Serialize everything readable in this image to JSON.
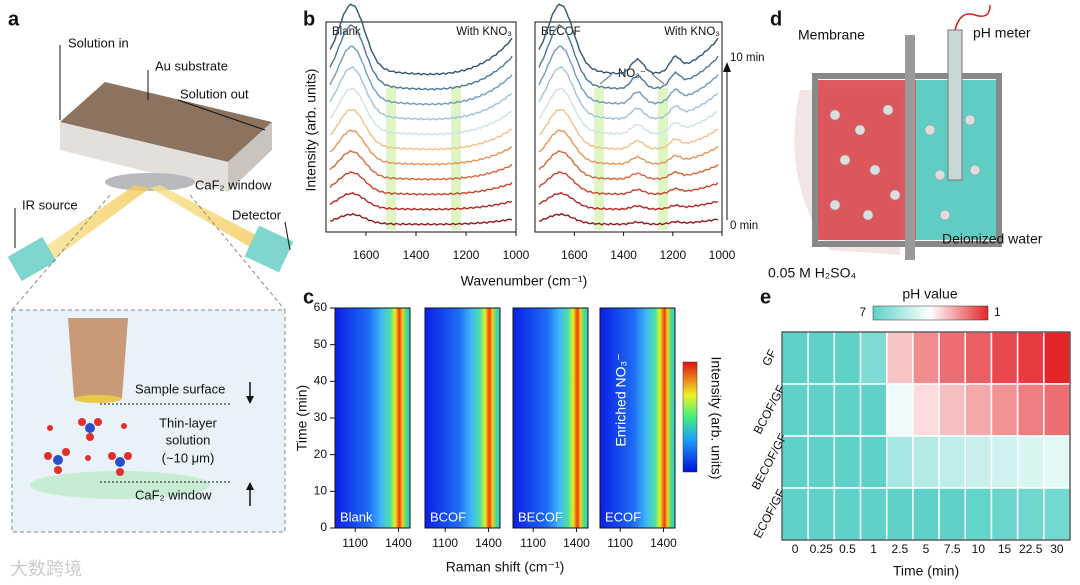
{
  "watermark": "大数跨境",
  "panel_a": {
    "label": "a",
    "solution_in": "Solution in",
    "au_substrate": "Au substrate",
    "solution_out": "Solution out",
    "window_top": "CaF₂ window",
    "ir_source": "IR source",
    "detector": "Detector",
    "sample_surface": "Sample surface",
    "thin_layer": "Thin-layer",
    "solution": "solution",
    "thickness": "(~10 μm)",
    "window_bottom": "CaF₂ window"
  },
  "panel_b": {
    "label": "b",
    "ylabel": "Intensity (arb. units)",
    "xlabel": "Wavenumber (cm⁻¹)",
    "xlim": [
      1760,
      1000
    ],
    "xticks": [
      1600,
      1400,
      1200,
      1000
    ],
    "plots": [
      {
        "name": "Blank",
        "condition": "With KNO₃"
      },
      {
        "name": "BECOF",
        "condition": "With KNO₃"
      }
    ],
    "annotation": "NO₃⁻",
    "time_end": "10 min",
    "time_start": "0 min"
  },
  "panel_c": {
    "label": "c",
    "ylabel": "Time (min)",
    "xlabel": "Raman shift (cm⁻¹)",
    "ylim": [
      0,
      60
    ],
    "yticks": [
      0,
      10,
      20,
      30,
      40,
      50,
      60
    ],
    "xlim": [
      960,
      1480
    ],
    "xticks": [
      1100,
      1400
    ],
    "panels": [
      "Blank",
      "BCOF",
      "BECOF",
      "ECOF"
    ],
    "colorbar_label": "Intensity (arb. units)",
    "annotation": "Enriched NO₃⁻"
  },
  "panel_d": {
    "label": "d",
    "membrane": "Membrane",
    "ph_meter": "pH meter",
    "deionized_water": "Deionized water",
    "acid": "0.05 M H₂SO₄"
  },
  "panel_e": {
    "label": "e",
    "type": "heatmap",
    "colorbar_title": "pH value",
    "color_range": [
      7,
      1
    ],
    "rows": [
      "GF",
      "BCOF/GF",
      "BECOF/GF",
      "ECOF/GF"
    ],
    "columns": [
      "0",
      "0.25",
      "0.5",
      "1",
      "2.5",
      "5",
      "7.5",
      "10",
      "15",
      "22.5",
      "30"
    ],
    "xlabel": "Time (min)",
    "values": [
      [
        7,
        7,
        7,
        6.4,
        3.2,
        2.4,
        2,
        1.8,
        1.5,
        1.3,
        1
      ],
      [
        7,
        7,
        7,
        7,
        4.3,
        3.5,
        3.1,
        2.8,
        2.5,
        2.2,
        2
      ],
      [
        7,
        7,
        7,
        7,
        5.6,
        5.4,
        5.2,
        5,
        4.9,
        4.7,
        4.5
      ],
      [
        7,
        7,
        7,
        7,
        7,
        7,
        7,
        6.9,
        6.8,
        6.7,
        6.6
      ]
    ]
  }
}
